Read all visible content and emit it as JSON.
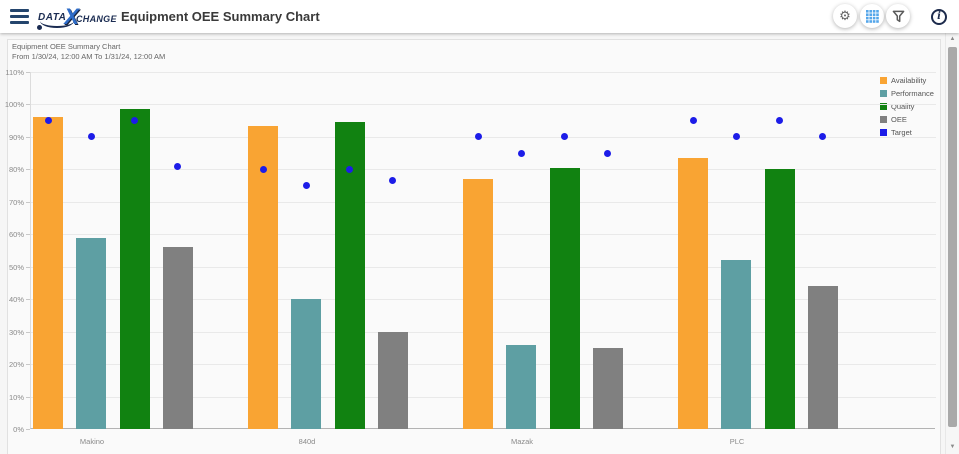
{
  "header": {
    "logo": {
      "data": "DATA",
      "x": "X",
      "change": "CHANGE"
    },
    "title": "Equipment OEE Summary Chart",
    "icons": {
      "menu": "hamburger-icon",
      "settings_glyph": "⚙",
      "table_view": "blue-grid-icon",
      "filter": "funnel-icon",
      "info_glyph": "i"
    }
  },
  "chart": {
    "title": "Equipment OEE Summary Chart",
    "subtitle": "From 1/30/24, 12:00 AM To 1/31/24, 12:00 AM"
  },
  "chart_data": {
    "type": "bar",
    "title": "Equipment OEE Summary Chart",
    "subtitle": "From 1/30/24, 12:00 AM To 1/31/24, 12:00 AM",
    "categories": [
      "Makino",
      "840d",
      "Mazak",
      "PLC"
    ],
    "series": [
      {
        "name": "Availability",
        "color": "#F9A433",
        "values": [
          96,
          93.5,
          77,
          83.5
        ]
      },
      {
        "name": "Performance",
        "color": "#5E9FA3",
        "values": [
          59,
          40,
          26,
          52
        ]
      },
      {
        "name": "Quality",
        "color": "#118211",
        "values": [
          98.5,
          94.5,
          80.5,
          80
        ]
      },
      {
        "name": "OEE",
        "color": "#808080",
        "values": [
          56,
          30,
          25,
          44
        ]
      }
    ],
    "target_series": {
      "name": "Target",
      "type": "point",
      "color": "#1C1CE8",
      "values": [
        [
          95,
          90,
          95,
          81
        ],
        [
          80,
          75,
          80,
          76.5
        ],
        [
          90,
          85,
          90,
          85
        ],
        [
          95,
          90,
          95,
          90
        ]
      ]
    },
    "ylim": [
      0,
      110
    ],
    "ytick_step": 10,
    "yticks": [
      "0%",
      "10%",
      "20%",
      "30%",
      "40%",
      "50%",
      "60%",
      "70%",
      "80%",
      "90%",
      "100%",
      "110%"
    ],
    "grid": true,
    "legend_position": "top-right",
    "legend": [
      "Availability",
      "Performance",
      "Quality",
      "OEE",
      "Target"
    ]
  },
  "colors": {
    "navy": "#1b2c52",
    "logo_blue": "#2e6cc8",
    "grid_icon_blue": "#55a6ea",
    "icon_gray": "#636363",
    "target_blue": "#1C1CE8"
  }
}
